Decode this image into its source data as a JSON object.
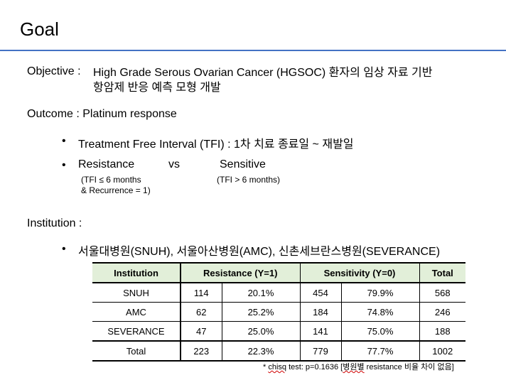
{
  "title": "Goal",
  "objective": {
    "label": "Objective :",
    "line1": "High Grade Serous Ovarian Cancer (HGSOC) 환자의 임상 자료 기반",
    "line2": "항암제 반응 예측 모형 개발"
  },
  "outcome": {
    "label": "Outcome :  Platinum response",
    "bullet1": "Treatment Free Interval (TFI) : 1차 치료 종료일 ~ 재발일",
    "resistance": "Resistance",
    "vs": "vs",
    "sensitive": "Sensitive",
    "res_note_1": "(TFI ≤ 6 months",
    "res_note_2": "& Recurrence = 1)",
    "sens_note": "(TFI > 6 months)"
  },
  "institution": {
    "label": "Institution :",
    "bullet": "서울대병원(SNUH), 서울아산병원(AMC), 신촌세브란스병원(SEVERANCE)"
  },
  "table": {
    "headers": [
      "Institution",
      "Resistance (Y=1)",
      "Sensitivity (Y=0)",
      "Total"
    ],
    "rows": [
      [
        "SNUH",
        "114",
        "20.1%",
        "454",
        "79.9%",
        "568"
      ],
      [
        "AMC",
        "62",
        "25.2%",
        "184",
        "74.8%",
        "246"
      ],
      [
        "SEVERANCE",
        "47",
        "25.0%",
        "141",
        "75.0%",
        "188"
      ]
    ],
    "total": [
      "Total",
      "223",
      "22.3%",
      "779",
      "77.7%",
      "1002"
    ]
  },
  "footnote": {
    "prefix": "* ",
    "chisq": "chisq",
    "middle": " test: p=0.1636 [",
    "hospital": "병원별",
    "suffix": " resistance 비율 차이 없음]"
  }
}
